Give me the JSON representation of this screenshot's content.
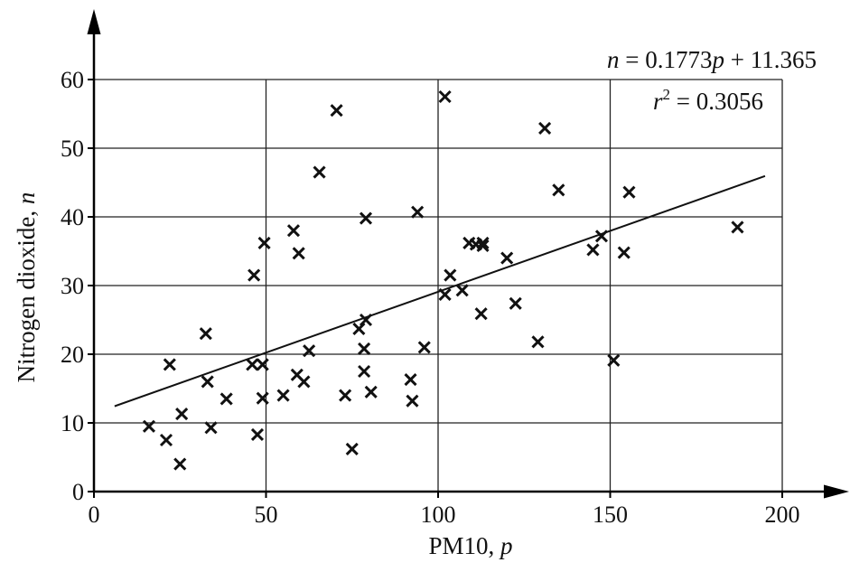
{
  "chart_data": {
    "type": "scatter",
    "title": "",
    "xlabel": {
      "main": "PM10, ",
      "var": "p"
    },
    "ylabel": {
      "main": "Nitrogen dioxide, ",
      "var": "n"
    },
    "xlim": [
      0,
      200
    ],
    "ylim": [
      0,
      60
    ],
    "x_ticks": [
      0,
      50,
      100,
      150,
      200
    ],
    "y_ticks": [
      0,
      10,
      20,
      30,
      40,
      50,
      60
    ],
    "grid": true,
    "marker": "x",
    "regression": {
      "slope": 0.1773,
      "intercept": 11.365,
      "x_range": [
        6,
        195
      ],
      "equation": {
        "lhs": "n",
        "mid": " = 0.1773",
        "var": "p",
        "rhs": " + 11.365"
      },
      "r2": {
        "base": "r",
        "exp": "2",
        "rest": " = 0.3056"
      }
    },
    "points": [
      {
        "x": 16,
        "y": 9.5
      },
      {
        "x": 21,
        "y": 7.5
      },
      {
        "x": 22,
        "y": 18.5
      },
      {
        "x": 25,
        "y": 4
      },
      {
        "x": 25.5,
        "y": 11.3
      },
      {
        "x": 32.5,
        "y": 23
      },
      {
        "x": 33,
        "y": 16
      },
      {
        "x": 34,
        "y": 9.3
      },
      {
        "x": 38.5,
        "y": 13.5
      },
      {
        "x": 46,
        "y": 18.5
      },
      {
        "x": 46.5,
        "y": 31.5
      },
      {
        "x": 47.5,
        "y": 8.3
      },
      {
        "x": 49,
        "y": 13.6
      },
      {
        "x": 49,
        "y": 18.5
      },
      {
        "x": 49.5,
        "y": 36.2
      },
      {
        "x": 55,
        "y": 14
      },
      {
        "x": 58,
        "y": 38
      },
      {
        "x": 59,
        "y": 17
      },
      {
        "x": 59.5,
        "y": 34.7
      },
      {
        "x": 61,
        "y": 16
      },
      {
        "x": 62.5,
        "y": 20.5
      },
      {
        "x": 65.5,
        "y": 46.5
      },
      {
        "x": 70.5,
        "y": 55.5
      },
      {
        "x": 73,
        "y": 14
      },
      {
        "x": 75,
        "y": 6.2
      },
      {
        "x": 77,
        "y": 23.7
      },
      {
        "x": 78.5,
        "y": 20.8
      },
      {
        "x": 78.5,
        "y": 17.5
      },
      {
        "x": 79,
        "y": 25
      },
      {
        "x": 79,
        "y": 39.8
      },
      {
        "x": 80.5,
        "y": 14.5
      },
      {
        "x": 92,
        "y": 16.3
      },
      {
        "x": 92.5,
        "y": 13.2
      },
      {
        "x": 94,
        "y": 40.7
      },
      {
        "x": 96,
        "y": 21
      },
      {
        "x": 102,
        "y": 57.5
      },
      {
        "x": 102,
        "y": 28.7
      },
      {
        "x": 103.5,
        "y": 31.5
      },
      {
        "x": 107,
        "y": 29.3
      },
      {
        "x": 109,
        "y": 36.2
      },
      {
        "x": 111,
        "y": 36
      },
      {
        "x": 112.5,
        "y": 25.9
      },
      {
        "x": 113,
        "y": 36.2
      },
      {
        "x": 113,
        "y": 35.8
      },
      {
        "x": 120,
        "y": 34
      },
      {
        "x": 122.5,
        "y": 27.4
      },
      {
        "x": 129,
        "y": 21.8
      },
      {
        "x": 131,
        "y": 52.9
      },
      {
        "x": 135,
        "y": 43.9
      },
      {
        "x": 145,
        "y": 35.2
      },
      {
        "x": 147.5,
        "y": 37.2
      },
      {
        "x": 151,
        "y": 19.1
      },
      {
        "x": 154,
        "y": 34.8
      },
      {
        "x": 155.5,
        "y": 43.6
      },
      {
        "x": 187,
        "y": 38.5
      }
    ]
  }
}
